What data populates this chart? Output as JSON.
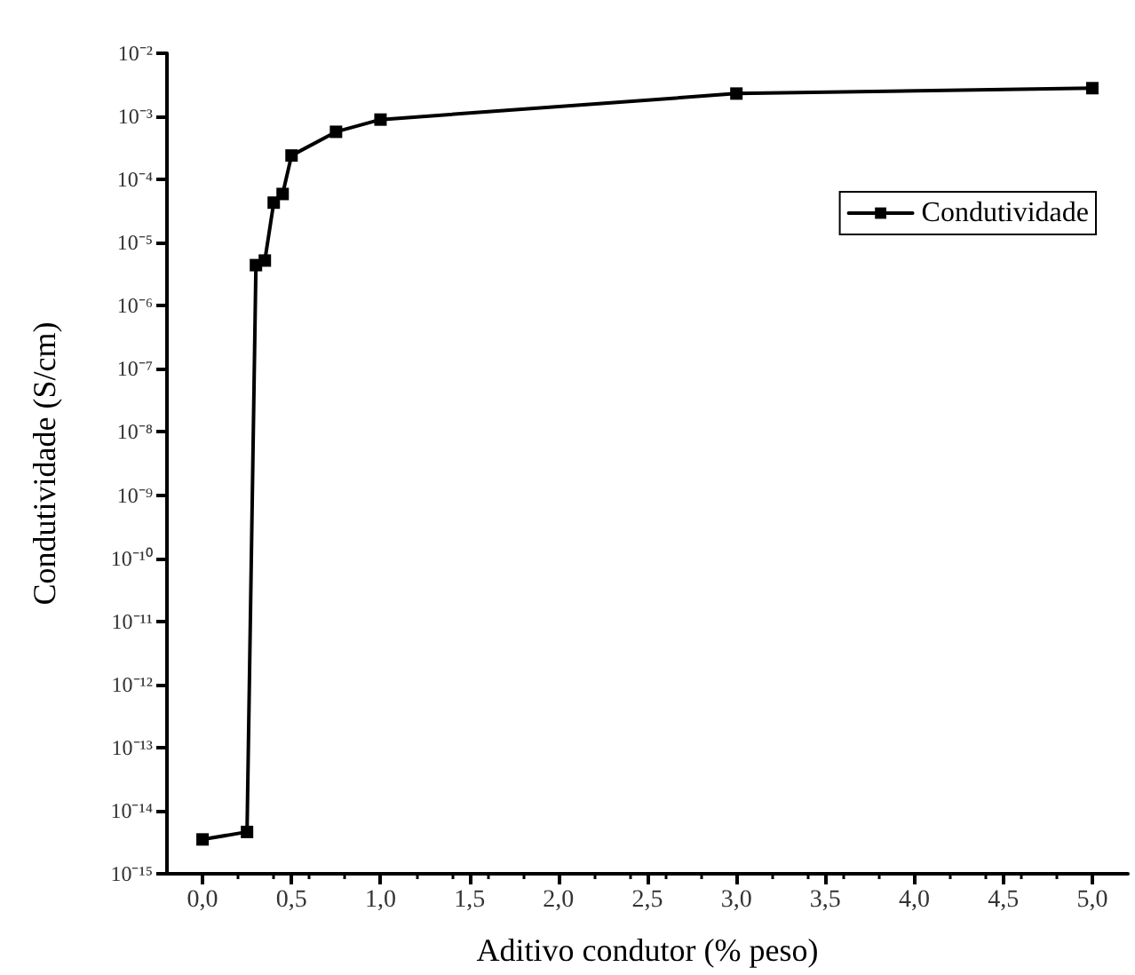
{
  "chart_data": {
    "type": "line",
    "xlabel": "Aditivo condutor (% peso)",
    "ylabel": "Condutividade (S/cm)",
    "x": [
      0,
      0.25,
      0.3,
      0.35,
      0.4,
      0.45,
      0.5,
      0.75,
      1,
      3,
      5
    ],
    "series": [
      {
        "name": "Condutividade",
        "color": "#000000",
        "values": [
          3.5e-15,
          4.6e-15,
          4.4e-06,
          5.2e-06,
          4.3e-05,
          5.9e-05,
          0.00024,
          0.00057,
          0.00089,
          0.0023,
          0.0028
        ]
      }
    ],
    "log": "y",
    "marker": "square",
    "line_style": "solid",
    "legend": "top right",
    "grid": false,
    "xlim": [
      -0.2,
      5.2
    ],
    "xticks": [
      {
        "value": 0,
        "label": "0,0"
      },
      {
        "value": 0.5,
        "label": "0,5"
      },
      {
        "value": 1,
        "label": "1,0"
      },
      {
        "value": 1.5,
        "label": "1,5"
      },
      {
        "value": 2,
        "label": "2,0"
      },
      {
        "value": 2.5,
        "label": "2,5"
      },
      {
        "value": 3,
        "label": "3,0"
      },
      {
        "value": 3.5,
        "label": "3,5"
      },
      {
        "value": 4,
        "label": "4,0"
      },
      {
        "value": 4.5,
        "label": "4,5"
      },
      {
        "value": 5,
        "label": "5,0"
      }
    ],
    "ylim": [
      1e-15,
      0.01
    ],
    "yticks": [
      {
        "value": 1e-15,
        "label": "10⁻¹⁵"
      },
      {
        "value": 1e-14,
        "label": "10⁻¹⁴"
      },
      {
        "value": 1e-13,
        "label": "10⁻¹³"
      },
      {
        "value": 1e-12,
        "label": "10⁻¹²"
      },
      {
        "value": 1e-11,
        "label": "10⁻¹¹"
      },
      {
        "value": 1e-10,
        "label": "10⁻¹⁰"
      },
      {
        "value": 1e-09,
        "label": "10⁻⁹"
      },
      {
        "value": 1e-08,
        "label": "10⁻⁸"
      },
      {
        "value": 1e-07,
        "label": "10⁻⁷"
      },
      {
        "value": 1e-06,
        "label": "10⁻⁶"
      },
      {
        "value": 1e-05,
        "label": "10⁻⁵"
      },
      {
        "value": 0.0001,
        "label": "10⁻⁴"
      },
      {
        "value": 0.001,
        "label": "10⁻³"
      },
      {
        "value": 0.01,
        "label": "10⁻²"
      }
    ]
  }
}
